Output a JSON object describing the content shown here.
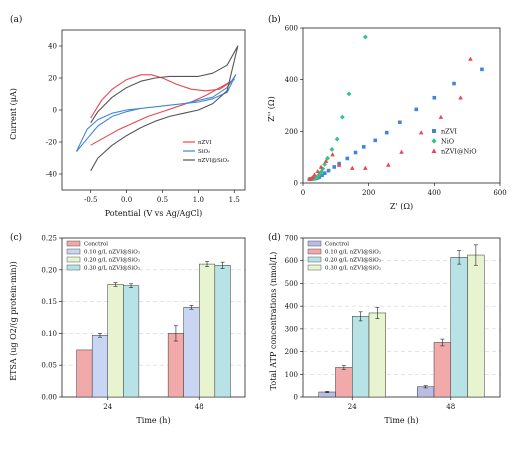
{
  "chart_data": [
    {
      "panel": "(a)",
      "type": "line",
      "xlabel": "Potential (V vs Ag/AgCl)",
      "ylabel": "Current (μA)",
      "xlim": [
        -0.9,
        1.65
      ],
      "ylim": [
        -50,
        50
      ],
      "xticks": [
        "-0.5",
        "0.0",
        "0.5",
        "1.0",
        "1.5"
      ],
      "xtick_values": [
        -0.5,
        0,
        0.5,
        1,
        1.5
      ],
      "yticks": [
        "-40",
        "-20",
        "0",
        "20",
        "40"
      ],
      "ytick_values": [
        -40,
        -20,
        0,
        20,
        40
      ],
      "legend_position": "lower-right",
      "series": [
        {
          "name": "nZVI",
          "color": "#e8474f",
          "x": [
            -0.5,
            -0.35,
            -0.2,
            0,
            0.2,
            0.35,
            0.5,
            0.7,
            0.9,
            1.1,
            1.3,
            1.5,
            1.3,
            1.1,
            0.9,
            0.7,
            0.5,
            0.3,
            0.1,
            -0.1,
            -0.3,
            -0.5
          ],
          "y": [
            -5,
            6,
            13,
            19,
            22,
            22,
            20,
            16,
            13,
            12,
            13,
            19,
            14,
            9,
            5,
            2,
            -1,
            -4,
            -8,
            -12,
            -17,
            -22
          ]
        },
        {
          "name": "SiO₂",
          "color": "#3f86d6",
          "x": [
            -0.7,
            -0.55,
            -0.4,
            -0.2,
            0,
            0.2,
            0.4,
            0.6,
            0.8,
            1.0,
            1.2,
            1.4,
            1.52,
            1.4,
            1.2,
            1.0,
            0.8,
            0.6,
            0.4,
            0.2,
            0,
            -0.2,
            -0.4,
            -0.55,
            -0.7
          ],
          "y": [
            -26,
            -18,
            -10,
            -4,
            -1,
            1,
            2,
            3,
            4,
            5,
            7,
            11,
            22,
            14,
            8,
            6,
            4,
            3,
            2,
            1,
            0,
            -2,
            -6,
            -12,
            -26
          ]
        },
        {
          "name": "nZVI@SiO₂",
          "color": "#555555",
          "x": [
            -0.5,
            -0.4,
            -0.2,
            0,
            0.2,
            0.4,
            0.6,
            0.8,
            1.0,
            1.2,
            1.4,
            1.55,
            1.4,
            1.2,
            1.0,
            0.8,
            0.6,
            0.4,
            0.2,
            0,
            -0.2,
            -0.4,
            -0.5
          ],
          "y": [
            -38,
            -30,
            -22,
            -16,
            -11,
            -7,
            -4,
            -2,
            0,
            4,
            12,
            40,
            28,
            23,
            21,
            21,
            21,
            20,
            18,
            14,
            8,
            -1,
            -8
          ]
        }
      ]
    },
    {
      "panel": "(b)",
      "type": "scatter",
      "xlabel": "Z' (Ω)",
      "ylabel": "Z'' (Ω)",
      "xlim": [
        0,
        600
      ],
      "ylim": [
        0,
        600
      ],
      "xticks": [
        "0",
        "200",
        "400",
        "600"
      ],
      "xtick_values": [
        0,
        200,
        400,
        600
      ],
      "yticks": [
        "0",
        "200",
        "400",
        "600"
      ],
      "ytick_values": [
        0,
        200,
        400,
        600
      ],
      "legend_position": "lower-right",
      "series": [
        {
          "name": "nZVI",
          "color": "#3f86d6",
          "marker": "square",
          "x": [
            20,
            25,
            30,
            35,
            40,
            45,
            50,
            58,
            66,
            78,
            95,
            110,
            135,
            160,
            185,
            220,
            255,
            295,
            345,
            400,
            460,
            545
          ],
          "y": [
            15,
            15,
            16,
            17,
            18,
            20,
            23,
            30,
            38,
            48,
            62,
            75,
            95,
            118,
            140,
            165,
            195,
            235,
            285,
            330,
            385,
            440
          ]
        },
        {
          "name": "NiO",
          "color": "#2ec48a",
          "marker": "diamond",
          "x": [
            20,
            24,
            28,
            32,
            36,
            40,
            44,
            48,
            52,
            56,
            60,
            66,
            75,
            88,
            104,
            120,
            140,
            190
          ],
          "y": [
            15,
            15,
            16,
            17,
            18,
            20,
            24,
            30,
            36,
            44,
            55,
            72,
            96,
            130,
            170,
            255,
            345,
            565
          ]
        },
        {
          "name": "nZVI@NiO",
          "color": "#e8474f",
          "marker": "triangle",
          "x": [
            20,
            25,
            30,
            35,
            45,
            55,
            70,
            90,
            110,
            150,
            190,
            260,
            300,
            360,
            420,
            480,
            510
          ],
          "y": [
            15,
            18,
            22,
            32,
            45,
            62,
            85,
            110,
            70,
            58,
            58,
            70,
            120,
            195,
            255,
            330,
            480
          ]
        }
      ]
    },
    {
      "panel": "(c)",
      "type": "bar",
      "xlabel": "Time (h)",
      "ylabel": "ETSA (ug O2/(g protein·min))",
      "categories": [
        "24",
        "48"
      ],
      "ylim": [
        0,
        0.25
      ],
      "yticks": [
        "0.00",
        "0.05",
        "0.10",
        "0.15",
        "0.20",
        "0.25"
      ],
      "ytick_values": [
        0,
        0.05,
        0.1,
        0.15,
        0.2,
        0.25
      ],
      "legend_position": "top-left",
      "series": [
        {
          "name": "Conctrol",
          "color": "#f1a9a9",
          "values": [
            0.074,
            0.1
          ],
          "errors": [
            0,
            0.012
          ]
        },
        {
          "name": "0.10 g/L nZVI@SiO₂",
          "color": "#c8d6f3",
          "values": [
            0.097,
            0.141
          ],
          "errors": [
            0.003,
            0.003
          ]
        },
        {
          "name": "0.20 g/L nZVI@SiO₂",
          "color": "#e8f3cf",
          "values": [
            0.177,
            0.209
          ],
          "errors": [
            0.003,
            0.004
          ]
        },
        {
          "name": "0.30 g/L nZVI@SiO₂",
          "color": "#b8e3e6",
          "values": [
            0.175,
            0.207
          ],
          "errors": [
            0.003,
            0.005
          ]
        }
      ]
    },
    {
      "panel": "(d)",
      "type": "bar",
      "xlabel": "Time (h)",
      "ylabel": "Total ATP concentrations (nmol/L)",
      "categories": [
        "24",
        "48"
      ],
      "ylim": [
        0,
        700
      ],
      "yticks": [
        "0",
        "100",
        "200",
        "300",
        "400",
        "500",
        "600",
        "700"
      ],
      "ytick_values": [
        0,
        100,
        200,
        300,
        400,
        500,
        600,
        700
      ],
      "legend_position": "top-left",
      "series": [
        {
          "name": "Conctrol",
          "color": "#b9bde6",
          "values": [
            22,
            45
          ],
          "errors": [
            3,
            5
          ]
        },
        {
          "name": "0.10 g/L nZVI@SiO₂",
          "color": "#f1a9a9",
          "values": [
            130,
            240
          ],
          "errors": [
            8,
            15
          ]
        },
        {
          "name": "0.20 g/L nZVI@SiO₂",
          "color": "#b8e3e6",
          "values": [
            355,
            615
          ],
          "errors": [
            20,
            30
          ]
        },
        {
          "name": "0.30 g/L nZVI@SiO₂",
          "color": "#e8f3cf",
          "values": [
            370,
            625
          ],
          "errors": [
            25,
            45
          ]
        }
      ]
    }
  ]
}
